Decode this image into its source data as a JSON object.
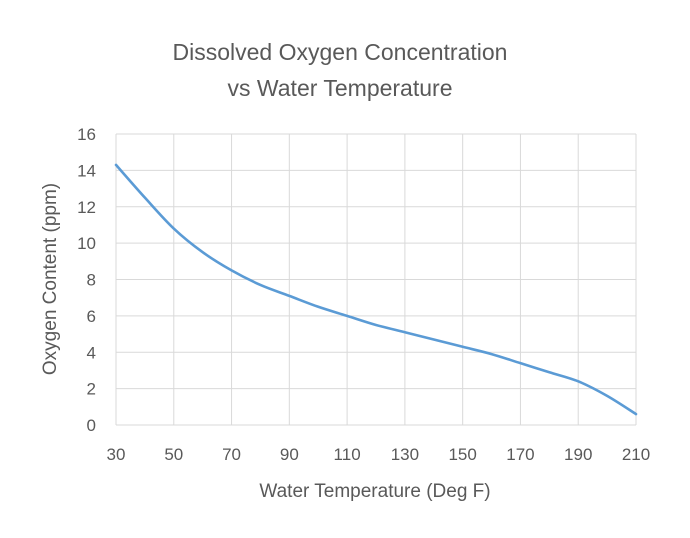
{
  "chart_data": {
    "type": "line",
    "title_lines": [
      "Dissolved Oxygen Concentration",
      "vs Water  Temperature"
    ],
    "xlabel": "Water Temperature (Deg F)",
    "ylabel": "Oxygen Content (ppm)",
    "xlim": [
      30,
      210
    ],
    "ylim": [
      0,
      16
    ],
    "x_ticks": [
      30,
      50,
      70,
      90,
      110,
      130,
      150,
      170,
      190,
      210
    ],
    "y_ticks": [
      0,
      2,
      4,
      6,
      8,
      10,
      12,
      14,
      16
    ],
    "grid": true,
    "line_color": "#5b9bd5",
    "series": [
      {
        "x": [
          30,
          40,
          50,
          60,
          70,
          80,
          90,
          100,
          110,
          120,
          130,
          140,
          150,
          160,
          170,
          180,
          190,
          200,
          210
        ],
        "values": [
          14.3,
          12.5,
          10.8,
          9.5,
          8.5,
          7.7,
          7.1,
          6.5,
          6.0,
          5.5,
          5.1,
          4.7,
          4.3,
          3.9,
          3.4,
          2.9,
          2.4,
          1.6,
          0.6
        ]
      }
    ]
  }
}
